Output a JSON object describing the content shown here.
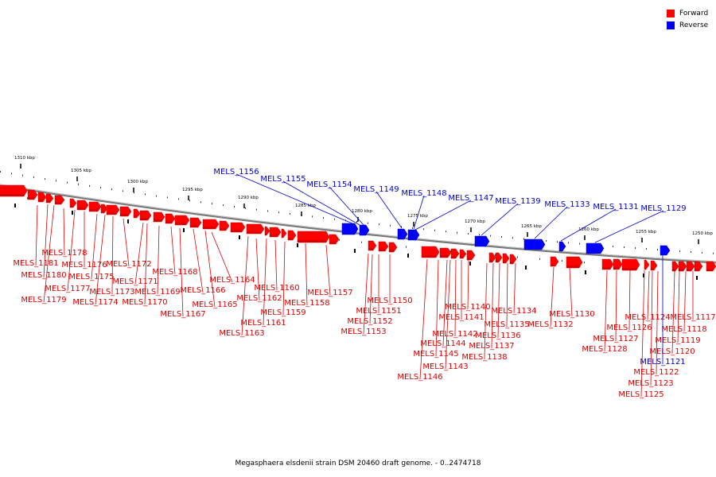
{
  "legend": {
    "items": [
      {
        "label": "Forward",
        "color": "#ff0000"
      },
      {
        "label": "Reverse",
        "color": "#0000ff"
      }
    ]
  },
  "caption": "Megasphaera elsdenii strain DSM 20460 draft genome. - 0..2474718",
  "ruler": {
    "labels": [
      "1310 kbp",
      "1305 kbp",
      "1300 kbp",
      "1295 kbp",
      "1290 kbp",
      "1285 kbp",
      "1280 kbp",
      "1275 kbp",
      "1270 kbp",
      "1265 kbp",
      "1260 kbp",
      "1255 kbp",
      "1250 kbp"
    ]
  },
  "forward_labels": [
    "MELS_1181",
    "MELS_1180",
    "MELS_1179",
    "MELS_1178",
    "MELS_1177",
    "MELS_1176",
    "MELS_1175",
    "MELS_1174",
    "MELS_1173",
    "MELS_1172",
    "MELS_1171",
    "MELS_1170",
    "MELS_1169",
    "MELS_1168",
    "MELS_1167",
    "MELS_1166",
    "MELS_1165",
    "MELS_1164",
    "MELS_1163",
    "MELS_1162",
    "MELS_1161",
    "MELS_1160",
    "MELS_1159",
    "MELS_1158",
    "MELS_1157",
    "MELS_1153",
    "MELS_1152",
    "MELS_1151",
    "MELS_1150",
    "MELS_1146",
    "MELS_1145",
    "MELS_1144",
    "MELS_1143",
    "MELS_1142",
    "MELS_1141",
    "MELS_1140",
    "MELS_1138",
    "MELS_1137",
    "MELS_1136",
    "MELS_1135",
    "MELS_1134",
    "MELS_1132",
    "MELS_1130",
    "MELS_1128",
    "MELS_1127",
    "MELS_1126",
    "MELS_1125",
    "MELS_1124",
    "MELS_1123",
    "MELS_1122",
    "MELS_1120",
    "MELS_1119",
    "MELS_1118",
    "MELS_1117"
  ],
  "reverse_labels": [
    "MELS_1156",
    "MELS_1155",
    "MELS_1154",
    "MELS_1149",
    "MELS_1148",
    "MELS_1147",
    "MELS_1139",
    "MELS_1133",
    "MELS_1131",
    "MELS_1129",
    "MELS_1121"
  ]
}
